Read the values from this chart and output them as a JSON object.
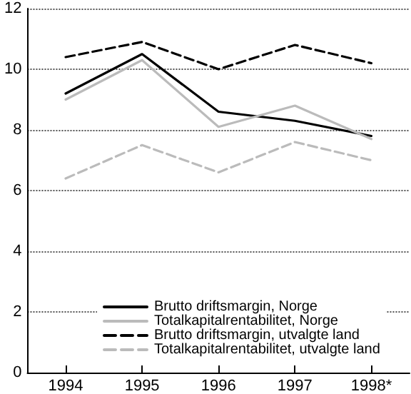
{
  "chart_data": {
    "type": "line",
    "categories": [
      "1994",
      "1995",
      "1996",
      "1997",
      "1998*"
    ],
    "series": [
      {
        "name": "Brutto driftsmargin, Norge",
        "color": "#000000",
        "line_style": "solid",
        "values": [
          9.2,
          10.5,
          8.6,
          8.3,
          7.8
        ]
      },
      {
        "name": "Totalkapitalrentabilitet, Norge",
        "color": "#bbbbbb",
        "line_style": "solid",
        "values": [
          9.0,
          10.3,
          8.1,
          8.8,
          7.7
        ]
      },
      {
        "name": "Brutto driftsmargin, utvalgte land",
        "color": "#000000",
        "line_style": "dashed",
        "values": [
          10.4,
          10.9,
          10.0,
          10.8,
          10.2
        ]
      },
      {
        "name": "Totalkapitalrentabilitet, utvalgte land",
        "color": "#bbbbbb",
        "line_style": "dashed",
        "values": [
          6.4,
          7.5,
          6.6,
          7.6,
          7.0
        ]
      }
    ],
    "ylim": [
      0,
      12
    ],
    "yticks": [
      0,
      2,
      4,
      6,
      8,
      10,
      12
    ],
    "grid": "y",
    "legend": "bottom",
    "marker": "none"
  }
}
